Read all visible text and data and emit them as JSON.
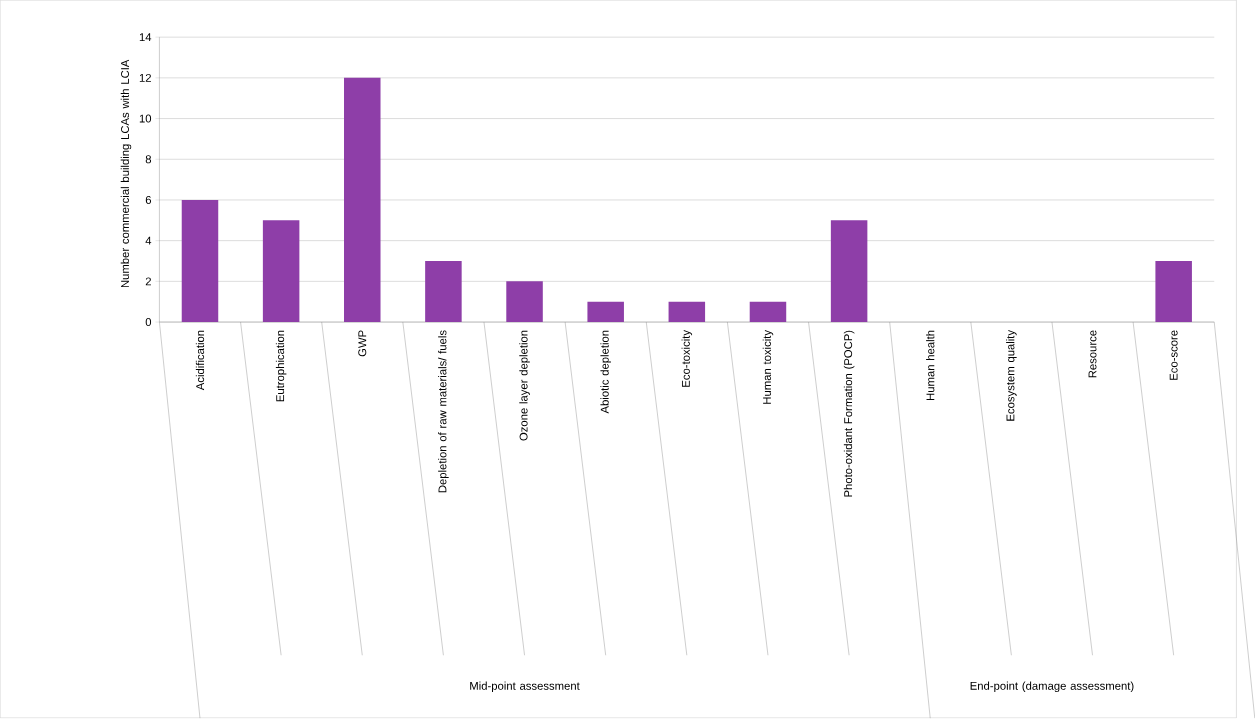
{
  "chart_data": {
    "type": "bar",
    "ylabel": "Number commercial building LCAs with LCIA",
    "categories": [
      "Acidification",
      "Eutrophication",
      "GWP",
      "Depletion of raw materials/ fuels",
      "Ozone layer depletion",
      "Abiotic depletion",
      "Eco-toxicity",
      "Human toxicity",
      "Photo-oxidant Formation (POCP)",
      "Human health",
      "Ecosystem quality",
      "Resource",
      "Eco-score"
    ],
    "values": [
      6,
      5,
      12,
      3,
      2,
      1,
      1,
      1,
      5,
      0,
      0,
      0,
      3
    ],
    "color": "#8e3ea8",
    "ylim": [
      0,
      14
    ],
    "yticks": [
      0,
      2,
      4,
      6,
      8,
      10,
      12,
      14
    ],
    "grid": "y",
    "legend": false,
    "annotations": [
      "Mid-point assessment",
      "End-point (damage assessment)"
    ]
  }
}
